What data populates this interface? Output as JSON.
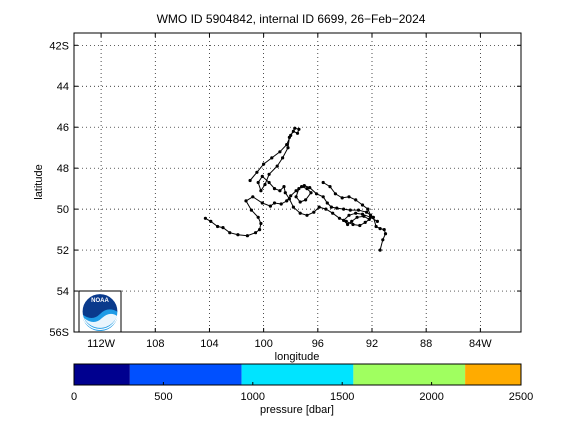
{
  "chart_data": {
    "type": "scatter",
    "title": "WMO ID 5904842, internal ID 6699, 26−Feb−2024",
    "xlabel": "longitude",
    "ylabel": "latitude",
    "x_unit": "degrees east (negative = W)",
    "y_unit": "degrees north (negative = S)",
    "xlim": [
      -114,
      -81
    ],
    "ylim": [
      -56,
      -41.4
    ],
    "x_ticks": [
      -112,
      -108,
      -104,
      -100,
      -96,
      -92,
      -88,
      -84
    ],
    "x_tick_labels": [
      "112W",
      "108",
      "104",
      "100",
      "96",
      "92",
      "88",
      "84W"
    ],
    "y_ticks": [
      -42,
      -44,
      -46,
      -48,
      -50,
      -52,
      -54,
      -56
    ],
    "y_tick_labels": [
      "42S",
      "44",
      "46",
      "48",
      "50",
      "52",
      "54",
      "56S"
    ],
    "grid": true,
    "series": [
      {
        "style": "line-with-markers",
        "color": "#000000",
        "points": [
          [
            -104.3,
            -50.45
          ],
          [
            -103.9,
            -50.6
          ],
          [
            -103.4,
            -50.85
          ],
          [
            -103.0,
            -50.9
          ],
          [
            -102.5,
            -51.15
          ],
          [
            -101.9,
            -51.25
          ],
          [
            -101.2,
            -51.3
          ],
          [
            -100.6,
            -51.15
          ],
          [
            -100.3,
            -51.0
          ],
          [
            -100.2,
            -50.7
          ],
          [
            -100.4,
            -50.4
          ],
          [
            -100.9,
            -50.05
          ],
          [
            -101.3,
            -49.6
          ],
          [
            -100.8,
            -49.4
          ],
          [
            -100.1,
            -49.7
          ],
          [
            -99.5,
            -49.85
          ],
          [
            -99.2,
            -49.7
          ],
          [
            -98.7,
            -49.75
          ],
          [
            -98.3,
            -49.6
          ],
          [
            -98.0,
            -49.35
          ],
          [
            -97.6,
            -49.1
          ],
          [
            -97.2,
            -48.9
          ],
          [
            -96.8,
            -49.0
          ],
          [
            -96.5,
            -49.2
          ],
          [
            -96.9,
            -49.55
          ],
          [
            -97.3,
            -49.65
          ],
          [
            -97.6,
            -49.4
          ],
          [
            -97.4,
            -49.0
          ],
          [
            -97.0,
            -48.85
          ],
          [
            -96.6,
            -48.95
          ],
          [
            -96.1,
            -49.25
          ],
          [
            -95.6,
            -49.4
          ],
          [
            -95.3,
            -49.7
          ],
          [
            -95.0,
            -49.9
          ],
          [
            -94.6,
            -49.95
          ],
          [
            -94.1,
            -50.0
          ],
          [
            -93.6,
            -50.05
          ],
          [
            -93.0,
            -50.05
          ],
          [
            -92.4,
            -50.15
          ],
          [
            -91.9,
            -50.4
          ],
          [
            -91.7,
            -50.85
          ],
          [
            -91.4,
            -50.95
          ],
          [
            -91.1,
            -51.0
          ],
          [
            -91.0,
            -51.2
          ],
          [
            -91.2,
            -51.5
          ],
          [
            -91.4,
            -52.0
          ]
        ]
      },
      {
        "style": "line-with-markers",
        "color": "#000000",
        "points": [
          [
            -101.0,
            -48.6
          ],
          [
            -100.5,
            -48.2
          ],
          [
            -100.0,
            -47.8
          ],
          [
            -99.4,
            -47.5
          ],
          [
            -98.8,
            -47.2
          ],
          [
            -98.3,
            -46.85
          ],
          [
            -98.0,
            -46.4
          ],
          [
            -97.7,
            -46.05
          ],
          [
            -97.4,
            -46.1
          ],
          [
            -97.5,
            -46.3
          ],
          [
            -97.8,
            -46.2
          ],
          [
            -98.1,
            -46.5
          ],
          [
            -98.2,
            -47.0
          ],
          [
            -98.6,
            -47.5
          ],
          [
            -99.0,
            -47.9
          ],
          [
            -99.6,
            -48.3
          ],
          [
            -99.9,
            -48.8
          ],
          [
            -100.2,
            -49.1
          ],
          [
            -100.4,
            -48.7
          ],
          [
            -100.1,
            -48.4
          ],
          [
            -99.6,
            -48.7
          ],
          [
            -99.2,
            -49.0
          ],
          [
            -98.8,
            -49.1
          ],
          [
            -98.5,
            -48.9
          ],
          [
            -98.4,
            -49.2
          ],
          [
            -98.1,
            -49.5
          ],
          [
            -97.8,
            -49.9
          ],
          [
            -97.3,
            -50.2
          ],
          [
            -96.8,
            -50.3
          ],
          [
            -96.3,
            -50.15
          ],
          [
            -95.9,
            -49.9
          ],
          [
            -95.4,
            -50.0
          ],
          [
            -94.9,
            -50.2
          ],
          [
            -94.4,
            -50.45
          ],
          [
            -93.9,
            -50.6
          ],
          [
            -93.4,
            -50.75
          ],
          [
            -92.9,
            -50.8
          ],
          [
            -92.5,
            -50.65
          ],
          [
            -92.2,
            -50.5
          ],
          [
            -92.6,
            -50.35
          ],
          [
            -93.1,
            -50.4
          ],
          [
            -93.5,
            -50.6
          ],
          [
            -93.8,
            -50.75
          ],
          [
            -94.1,
            -50.55
          ],
          [
            -93.7,
            -50.3
          ],
          [
            -93.2,
            -50.2
          ],
          [
            -92.7,
            -50.25
          ],
          [
            -92.1,
            -50.4
          ],
          [
            -91.6,
            -50.6
          ]
        ]
      },
      {
        "style": "line-with-markers",
        "color": "#000000",
        "points": [
          [
            -95.6,
            -48.7
          ],
          [
            -95.1,
            -48.9
          ],
          [
            -94.7,
            -49.25
          ],
          [
            -94.2,
            -49.45
          ],
          [
            -93.7,
            -49.4
          ],
          [
            -93.2,
            -49.55
          ],
          [
            -92.7,
            -49.8
          ],
          [
            -92.3,
            -50.0
          ],
          [
            -92.1,
            -50.3
          ]
        ]
      }
    ],
    "colorbar": {
      "label": "pressure [dbar]",
      "range": [
        0,
        2500
      ],
      "ticks": [
        0,
        500,
        1000,
        1500,
        2000,
        2500
      ],
      "bins": [
        {
          "from": 0,
          "to": 312.5,
          "color": "#00008f"
        },
        {
          "from": 312.5,
          "to": 937.5,
          "color": "#0050ff"
        },
        {
          "from": 937.5,
          "to": 1562.5,
          "color": "#00e4ff"
        },
        {
          "from": 1562.5,
          "to": 2187.5,
          "color": "#a0ff60"
        },
        {
          "from": 2187.5,
          "to": 2500,
          "color": "#ffab00"
        }
      ]
    }
  },
  "logo": {
    "name": "noaa-logo",
    "text": "NOAA"
  }
}
